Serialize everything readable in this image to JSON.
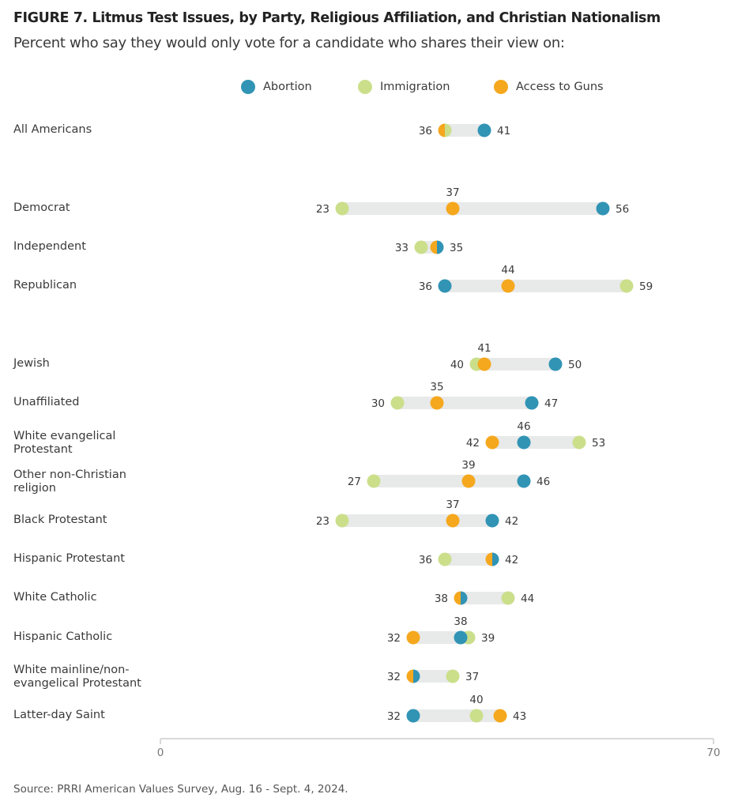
{
  "title": "FIGURE 7.  Litmus Test Issues, by Party, Religious Affiliation, and Christian Nationalism",
  "subtitle": "Percent who say they would only vote for a candidate who shares their view on:",
  "source": "Source: PRRI American Values Survey, Aug. 16 - Sept. 4, 2024.",
  "chart_data": {
    "type": "dot-range",
    "title": "FIGURE 7.  Litmus Test Issues, by Party, Religious Affiliation, and Christian Nationalism",
    "subtitle": "Percent who say they would only vote for a candidate who shares their view on:",
    "xlabel": "",
    "ylabel": "",
    "xlim": [
      0,
      70
    ],
    "x_ticks": [
      "0",
      "70"
    ],
    "grid": false,
    "legend_position": "top-center",
    "series": [
      {
        "name": "Abortion",
        "color": "#3194b5"
      },
      {
        "name": "Immigration",
        "color": "#cbdf8b"
      },
      {
        "name": "Access to Guns",
        "color": "#f5a81e"
      }
    ],
    "categories": [
      {
        "label": "All Americans",
        "Abortion": 41,
        "Immigration": 36,
        "Access to Guns": 36
      },
      {
        "label": "Democrat",
        "Abortion": 56,
        "Immigration": 23,
        "Access to Guns": 37
      },
      {
        "label": "Independent",
        "Abortion": 35,
        "Immigration": 33,
        "Access to Guns": 35
      },
      {
        "label": "Republican",
        "Abortion": 36,
        "Immigration": 59,
        "Access to Guns": 44
      },
      {
        "label": "Jewish",
        "Abortion": 50,
        "Immigration": 40,
        "Access to Guns": 41
      },
      {
        "label": "Unaffiliated",
        "Abortion": 47,
        "Immigration": 30,
        "Access to Guns": 35
      },
      {
        "label": "White evangelical Protestant",
        "label_lines": [
          "White evangelical",
          "Protestant"
        ],
        "Abortion": 46,
        "Immigration": 53,
        "Access to Guns": 42
      },
      {
        "label": "Other non-Christian religion",
        "label_lines": [
          "Other non-Christian",
          "religion"
        ],
        "Abortion": 46,
        "Immigration": 27,
        "Access to Guns": 39
      },
      {
        "label": "Black Protestant",
        "Abortion": 42,
        "Immigration": 23,
        "Access to Guns": 37
      },
      {
        "label": "Hispanic Protestant",
        "Abortion": 42,
        "Immigration": 36,
        "Access to Guns": 42
      },
      {
        "label": "White Catholic",
        "Abortion": 38,
        "Immigration": 44,
        "Access to Guns": 38
      },
      {
        "label": "Hispanic Catholic",
        "Abortion": 38,
        "Immigration": 39,
        "Access to Guns": 32
      },
      {
        "label": "White mainline/non-evangelical Protestant",
        "label_lines": [
          "White mainline/non-",
          "evangelical Protestant"
        ],
        "Abortion": 32,
        "Immigration": 37,
        "Access to Guns": 32
      },
      {
        "label": "Latter-day Saint",
        "Abortion": 32,
        "Immigration": 40,
        "Access to Guns": 43
      }
    ]
  },
  "colors": {
    "track": "#e8e9e9",
    "axis": "#d9d9d9"
  }
}
